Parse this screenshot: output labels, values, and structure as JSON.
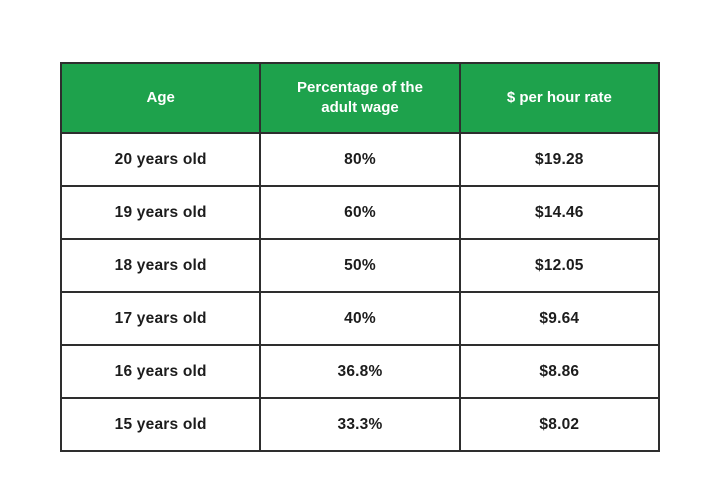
{
  "colors": {
    "header_background": "#1ea24c",
    "header_text": "#ffffff",
    "border": "#2e2e2e",
    "body_text": "#1c1c1c",
    "page_background": "#ffffff"
  },
  "table": {
    "columns": [
      "Age",
      "Percentage of the adult wage",
      "$ per hour rate"
    ],
    "rows": [
      {
        "age": "20 years old",
        "percentage": "80%",
        "rate": "$19.28"
      },
      {
        "age": "19 years old",
        "percentage": "60%",
        "rate": "$14.46"
      },
      {
        "age": "18 years old",
        "percentage": "50%",
        "rate": "$12.05"
      },
      {
        "age": "17 years old",
        "percentage": "40%",
        "rate": "$9.64"
      },
      {
        "age": "16 years old",
        "percentage": "36.8%",
        "rate": "$8.86"
      },
      {
        "age": "15 years old",
        "percentage": "33.3%",
        "rate": "$8.02"
      }
    ]
  },
  "chart_data": {
    "type": "table",
    "title": "",
    "columns": [
      "Age",
      "Percentage of the adult wage",
      "$ per hour rate"
    ],
    "rows": [
      [
        "20 years old",
        "80%",
        "$19.28"
      ],
      [
        "19 years old",
        "60%",
        "$14.46"
      ],
      [
        "18 years old",
        "50%",
        "$12.05"
      ],
      [
        "17 years old",
        "40%",
        "$9.64"
      ],
      [
        "16 years old",
        "36.8%",
        "$8.86"
      ],
      [
        "15 years old",
        "33.3%",
        "$8.02"
      ]
    ]
  }
}
